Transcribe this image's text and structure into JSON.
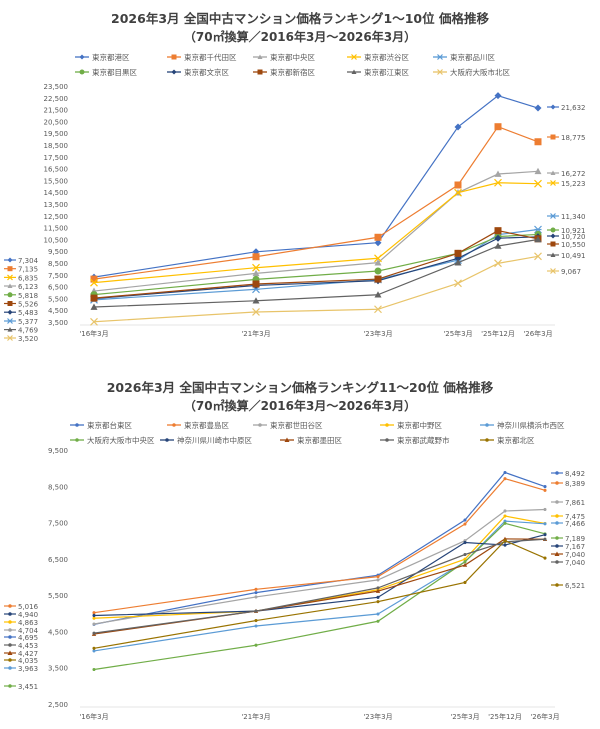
{
  "chart_data": [
    {
      "type": "line",
      "title": "2026年3月 全国中古マンション価格ランキング1～10位 価格推移",
      "subtitle": "（70㎡換算／2016年3月～2026年3月）",
      "categories": [
        "'16年3月",
        "'21年3月",
        "'23年3月",
        "'25年3月",
        "'25年12月",
        "'26年3月"
      ],
      "ylim": [
        3500,
        23500
      ],
      "yticks": [
        3500,
        4500,
        5500,
        6500,
        7500,
        8500,
        9500,
        10500,
        11500,
        12500,
        13500,
        14500,
        15500,
        16500,
        17500,
        18500,
        19500,
        20500,
        21500,
        22500,
        23500
      ],
      "grid": false,
      "legend": "top",
      "series": [
        {
          "name": "東京都港区",
          "color": "#4472C4",
          "marker": "diamond",
          "values": [
            7304,
            9450,
            10220,
            20030,
            22680,
            21632
          ]
        },
        {
          "name": "東京都千代田区",
          "color": "#ED7D31",
          "marker": "square",
          "values": [
            7135,
            9030,
            10680,
            15110,
            20050,
            18775
          ]
        },
        {
          "name": "東京都中央区",
          "color": "#A5A5A5",
          "marker": "triangle",
          "values": [
            6123,
            7620,
            8530,
            14460,
            16040,
            16272
          ]
        },
        {
          "name": "東京都渋谷区",
          "color": "#FFC000",
          "marker": "x",
          "values": [
            6835,
            8100,
            8900,
            14460,
            15300,
            15223
          ]
        },
        {
          "name": "東京都品川区",
          "color": "#5B9BD5",
          "marker": "star",
          "values": [
            5377,
            6270,
            7100,
            8750,
            10900,
            11340
          ]
        },
        {
          "name": "東京都目黒区",
          "color": "#70AD47",
          "marker": "circle",
          "values": [
            5818,
            7110,
            7820,
            9320,
            10740,
            10921
          ]
        },
        {
          "name": "東京都文京区",
          "color": "#264478",
          "marker": "diamond",
          "values": [
            5483,
            6600,
            7000,
            8900,
            10600,
            10720
          ]
        },
        {
          "name": "東京都新宿区",
          "color": "#9E480E",
          "marker": "square",
          "values": [
            5526,
            6720,
            7140,
            9320,
            11240,
            10550
          ]
        },
        {
          "name": "東京都江東区",
          "color": "#636363",
          "marker": "triangle",
          "values": [
            4769,
            5300,
            5810,
            8530,
            9940,
            10491
          ]
        },
        {
          "name": "大阪府大阪市北区",
          "color": "#E8C46A",
          "marker": "x",
          "values": [
            3520,
            4350,
            4580,
            6780,
            8470,
            9067
          ]
        }
      ]
    },
    {
      "type": "line",
      "title": "2026年3月 全国中古マンション価格ランキング11～20位 価格推移",
      "subtitle": "（70㎡換算／2016年3月～2026年3月）",
      "categories": [
        "'16年3月",
        "'21年3月",
        "'23年3月",
        "'25年3月",
        "'25年12月",
        "'26年3月"
      ],
      "ylim": [
        2500,
        9500
      ],
      "yticks": [
        2500,
        3500,
        4500,
        5500,
        6500,
        7500,
        8500,
        9500
      ],
      "grid": false,
      "legend": "top",
      "series": [
        {
          "name": "東京都台東区",
          "color": "#4472C4",
          "marker": "plus",
          "values": [
            4695,
            5570,
            6050,
            7570,
            8880,
            8492
          ]
        },
        {
          "name": "東京都豊島区",
          "color": "#ED7D31",
          "marker": "plus",
          "values": [
            5016,
            5660,
            6010,
            7460,
            8710,
            8389
          ]
        },
        {
          "name": "東京都世田谷区",
          "color": "#A5A5A5",
          "marker": "plus",
          "values": [
            4704,
            5450,
            5920,
            7000,
            7820,
            7861
          ]
        },
        {
          "name": "東京都中野区",
          "color": "#FFC000",
          "marker": "plus",
          "values": [
            4863,
            5060,
            5650,
            6490,
            7680,
            7475
          ]
        },
        {
          "name": "神奈川県横浜市西区",
          "color": "#5B9BD5",
          "marker": "plus",
          "values": [
            3963,
            4650,
            4980,
            6420,
            7540,
            7466
          ]
        },
        {
          "name": "大阪府大阪市中央区",
          "color": "#70AD47",
          "marker": "plus",
          "values": [
            3451,
            4120,
            4780,
            6420,
            7480,
            7189
          ]
        },
        {
          "name": "神奈川県川崎市中原区",
          "color": "#264478",
          "marker": "plus",
          "values": [
            4940,
            5060,
            5440,
            6950,
            6880,
            7167
          ]
        },
        {
          "name": "東京都墨田区",
          "color": "#9E480E",
          "marker": "triangle",
          "values": [
            4427,
            5060,
            5610,
            6330,
            7050,
            7040
          ]
        },
        {
          "name": "東京都武蔵野市",
          "color": "#636363",
          "marker": "plus",
          "values": [
            4453,
            5060,
            5700,
            6620,
            6970,
            7040
          ]
        },
        {
          "name": "東京都北区",
          "color": "#997300",
          "marker": "plus",
          "values": [
            4035,
            4800,
            5320,
            5850,
            7000,
            6521
          ]
        }
      ]
    }
  ]
}
